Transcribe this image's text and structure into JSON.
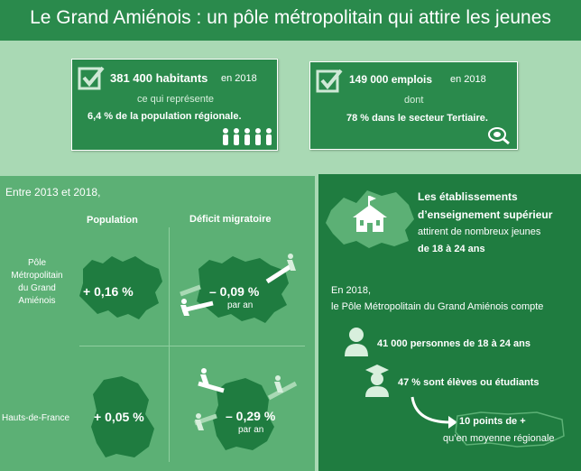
{
  "header": {
    "title": "Le Grand Amiénois : un pôle métropolitain qui attire les jeunes"
  },
  "card1": {
    "big": "381 400 habitants",
    "year": "en 2018",
    "sub": "ce qui représente",
    "detail": "6,4 % de la population régionale."
  },
  "card2": {
    "big": "149 000 emplois",
    "year": "en 2018",
    "sub": "dont",
    "detail": "78 % dans le secteur Tertiaire."
  },
  "grid": {
    "intro": "Entre 2013 et 2018,",
    "col1": "Population",
    "col2": "Déficit migratoire",
    "row1": [
      "Pôle",
      "Métropolitain",
      "du Grand",
      "Amiénois"
    ],
    "row2": "Hauts-de-France",
    "v11": "+ 0,16 %",
    "v12": "– 0,09 %",
    "v12b": "par an",
    "v21": "+ 0,05 %",
    "v22": "– 0,29 %",
    "v22b": "par an"
  },
  "right": {
    "l1": "Les établissements",
    "l2": "d’enseignement supérieur",
    "l3": "attirent de nombreux jeunes",
    "l4": "de 18 à 24 ans",
    "p1": "En 2018,",
    "p2": "le Pôle Métropolitain du Grand Amiénois compte",
    "s1": "41 000 personnes de 18 à 24 ans",
    "s2": "47 % sont élèves ou étudiants",
    "s3": "10 points de +",
    "s4": "qu’en moyenne régionale"
  },
  "colors": {
    "dark": "#1f7c40",
    "mid": "#2a8a4c",
    "light": "#5cb075",
    "pale": "#a9d9b4"
  }
}
